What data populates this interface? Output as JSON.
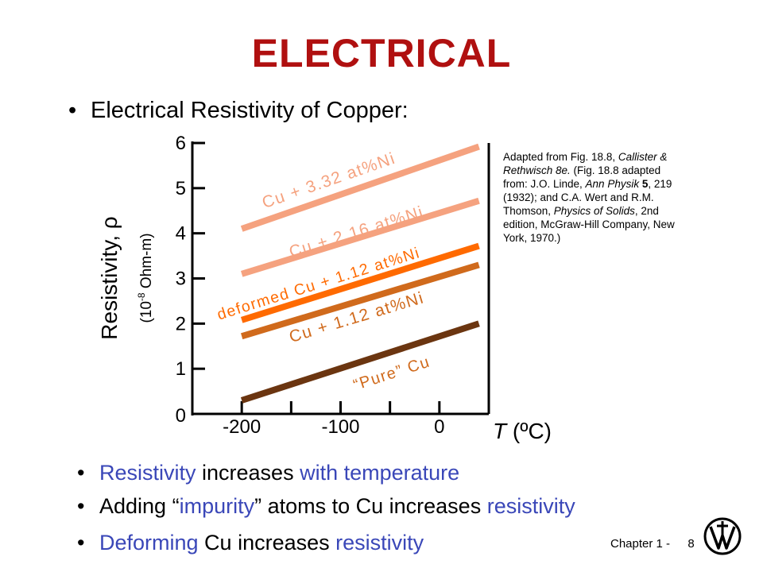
{
  "title": "ELECTRICAL",
  "subtitle": "Electrical Resistivity of Copper:",
  "bullets": [
    {
      "parts": [
        {
          "text": "Resistivity",
          "color": "#3a47b8"
        },
        {
          "text": " increases ",
          "color": "#000000"
        },
        {
          "text": "with temperature",
          "color": "#3a47b8"
        }
      ]
    },
    {
      "parts": [
        {
          "text": "Adding “",
          "color": "#000000"
        },
        {
          "text": "impurity",
          "color": "#3a47b8"
        },
        {
          "text": "” atoms to Cu increases ",
          "color": "#000000"
        },
        {
          "text": "resistivity",
          "color": "#3a47b8"
        }
      ]
    },
    {
      "parts": [
        {
          "text": "Deforming",
          "color": "#3a47b8"
        },
        {
          "text": " Cu increases ",
          "color": "#000000"
        },
        {
          "text": "resistivity",
          "color": "#3a47b8"
        }
      ]
    }
  ],
  "note": {
    "l1": "Adapted from Fig. 18.8, ",
    "l1i": "Callister &",
    "l2i": "Rethwisch 8e.",
    "l2": " (Fig. 18.8 adapted",
    "l3": "from: J.O. Linde, ",
    "l3i": "Ann Physik",
    "l3b": " 5",
    "l3e": ", 219",
    "l4": "(1932); and C.A. Wert and R.M.",
    "l5": "Thomson, ",
    "l5i": "Physics of Solids",
    "l5e": ", 2nd",
    "l6": "edition, McGraw-Hill Company, New",
    "l7": "York, 1970.)"
  },
  "footer": {
    "chapter": "Chapter 1 -",
    "page": "8"
  },
  "chart_data": {
    "type": "line",
    "xlabel_italic": "T",
    "xlabel_rest": " (ºC)",
    "ylabel": "Resistivity, ρ",
    "ylabel_unit_pre": "(10",
    "ylabel_unit_sup": "-8",
    "ylabel_unit_post": " Ohm-m)",
    "xlim": [
      -250,
      50
    ],
    "ylim": [
      0,
      6
    ],
    "xticks_major": [
      -200,
      -100,
      0
    ],
    "xticks_minor": [
      -250,
      -150,
      -50,
      50
    ],
    "yticks": [
      0,
      1,
      2,
      3,
      4,
      5,
      6
    ],
    "series": [
      {
        "name": "Cu + 3.32 at%Ni",
        "color": "#f5a27f",
        "label_color": "#f5a27f",
        "x": [
          -200,
          40
        ],
        "y": [
          4.1,
          5.92
        ]
      },
      {
        "name": "Cu + 2.16 at%Ni",
        "color": "#f5a27f",
        "label_color": "#f5a27f",
        "x": [
          -200,
          40
        ],
        "y": [
          3.1,
          4.72
        ]
      },
      {
        "name": "deformed Cu + 1.12 at%Ni",
        "color": "#ff6a00",
        "label_color": "#ff6a00",
        "x": [
          -200,
          40
        ],
        "y": [
          2.08,
          3.72
        ]
      },
      {
        "name": "Cu + 1.12 at%Ni",
        "color": "#d06a1c",
        "label_color": "#d06a1c",
        "x": [
          -200,
          40
        ],
        "y": [
          1.72,
          3.3
        ]
      },
      {
        "name": "“Pure” Cu",
        "color": "#6b3510",
        "label_color": "#d06a1c",
        "x": [
          -200,
          40
        ],
        "y": [
          0.3,
          2.0
        ]
      }
    ]
  }
}
